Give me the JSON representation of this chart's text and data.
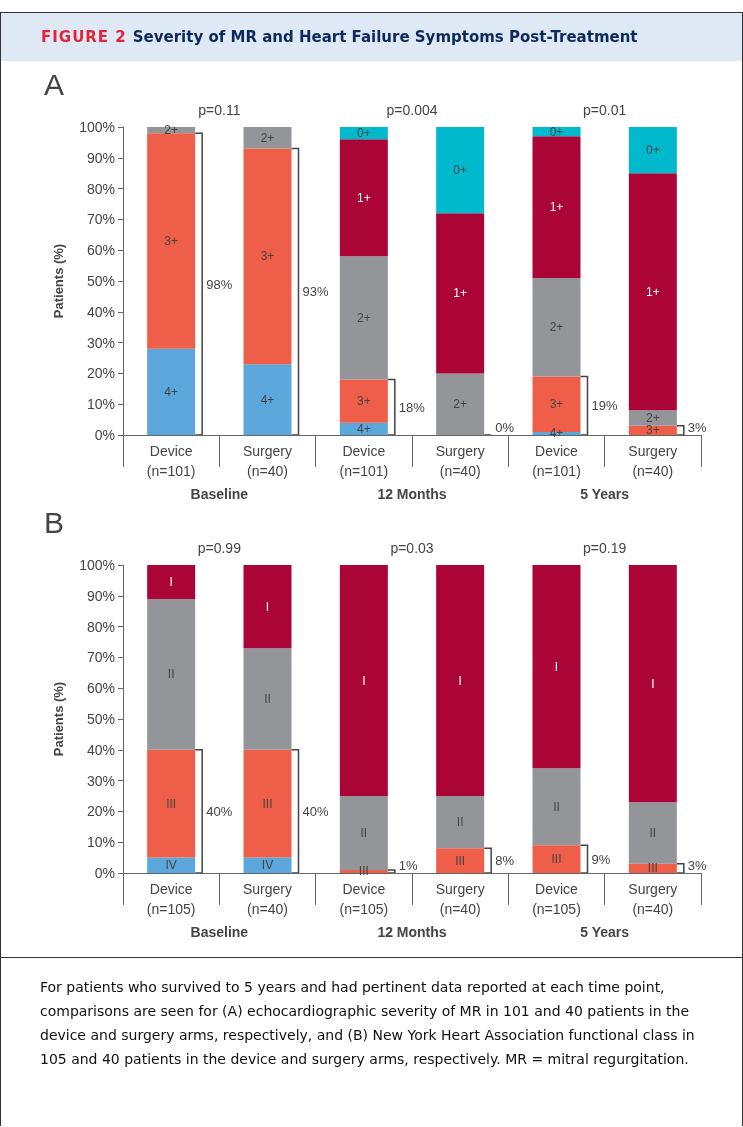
{
  "chart_data": [
    {
      "type": "bar",
      "title": "FIGURE 2 Severity of MR and Heart Failure Symptoms Post-Treatment",
      "subtitle": "A",
      "ylabel": "Patients (%)",
      "stacked": true,
      "grid": false,
      "legend": false,
      "categories": [
        "Device\n(n=101)",
        "Surgery\n(n=40)",
        "Device\n(n=101)",
        "Surgery\n(n=40)",
        "Device\n(n=101)",
        "Surgery\n(n=40)"
      ],
      "series": [
        {
          "name": "4+",
          "color": "#5ba7db",
          "values": [
            28,
            23,
            4,
            0,
            1,
            0
          ]
        },
        {
          "name": "3+",
          "color": "#ef5e48",
          "values": [
            70,
            70,
            14,
            0,
            18,
            3
          ]
        },
        {
          "name": "2+",
          "color": "#939598",
          "values": [
            2,
            7,
            40,
            20,
            32,
            5
          ]
        },
        {
          "name": "1+",
          "color": "#ab0538",
          "values": [
            0,
            0,
            38,
            52,
            46,
            77
          ]
        },
        {
          "name": "0+",
          "color": "#00b9cd",
          "values": [
            0,
            0,
            4,
            28,
            3,
            15
          ]
        }
      ],
      "ylim": [
        0,
        100
      ],
      "yticks": [
        {
          "value": 0,
          "label": "0%"
        },
        {
          "value": 10,
          "label": "10%"
        },
        {
          "value": 20,
          "label": "20%"
        },
        {
          "value": 30,
          "label": "30%"
        },
        {
          "value": 40,
          "label": "40%"
        },
        {
          "value": 50,
          "label": "50%"
        },
        {
          "value": 60,
          "label": "60%"
        },
        {
          "value": 70,
          "label": "70%"
        },
        {
          "value": 80,
          "label": "80%"
        },
        {
          "value": 90,
          "label": "90%"
        },
        {
          "value": 100,
          "label": "100%"
        }
      ],
      "annotations": [
        "p=0.11",
        "p=0.004",
        "p=0.01",
        "Baseline",
        "12 Months",
        "5 Years",
        "98%",
        "93%",
        "18%",
        "0%",
        "19%",
        "3%"
      ]
    },
    {
      "type": "bar",
      "title": "B",
      "ylabel": "Patients (%)",
      "stacked": true,
      "grid": false,
      "legend": false,
      "categories": [
        "Device\n(n=105)",
        "Surgery\n(n=40)",
        "Device\n(n=105)",
        "Surgery\n(n=40)",
        "Device\n(n=105)",
        "Surgery\n(n=40)"
      ],
      "series": [
        {
          "name": "IV",
          "color": "#5ba7db",
          "values": [
            5,
            5,
            0,
            0,
            0,
            0
          ]
        },
        {
          "name": "III",
          "color": "#ef5e48",
          "values": [
            35,
            35,
            1,
            8,
            9,
            3
          ]
        },
        {
          "name": "II",
          "color": "#939598",
          "values": [
            49,
            33,
            24,
            17,
            25,
            20
          ]
        },
        {
          "name": "I",
          "color": "#ab0538",
          "values": [
            11,
            27,
            75,
            75,
            66,
            77
          ]
        }
      ],
      "ylim": [
        0,
        100
      ],
      "yticks": [
        {
          "value": 0,
          "label": "0%"
        },
        {
          "value": 10,
          "label": "10%"
        },
        {
          "value": 20,
          "label": "20%"
        },
        {
          "value": 30,
          "label": "30%"
        },
        {
          "value": 40,
          "label": "40%"
        },
        {
          "value": 50,
          "label": "50%"
        },
        {
          "value": 60,
          "label": "60%"
        },
        {
          "value": 70,
          "label": "70%"
        },
        {
          "value": 80,
          "label": "80%"
        },
        {
          "value": 90,
          "label": "90%"
        },
        {
          "value": 100,
          "label": "100%"
        }
      ],
      "annotations": [
        "p=0.99",
        "p=0.03",
        "p=0.19",
        "Baseline",
        "12 Months",
        "5 Years",
        "40%",
        "40%",
        "1%",
        "8%",
        "9%",
        "3%",
        "For patients who survived to 5 years and had pertinent data reported at each time point, comparisons are seen for (A) echocardiographic severity of MR in 101 and 40 patients in the device and surgery arms, respectively, and (B) New York Heart Association functional class in 105 and 40 patients in the device and surgery arms, respectively. MR = mitral regurgitation."
      ]
    }
  ]
}
